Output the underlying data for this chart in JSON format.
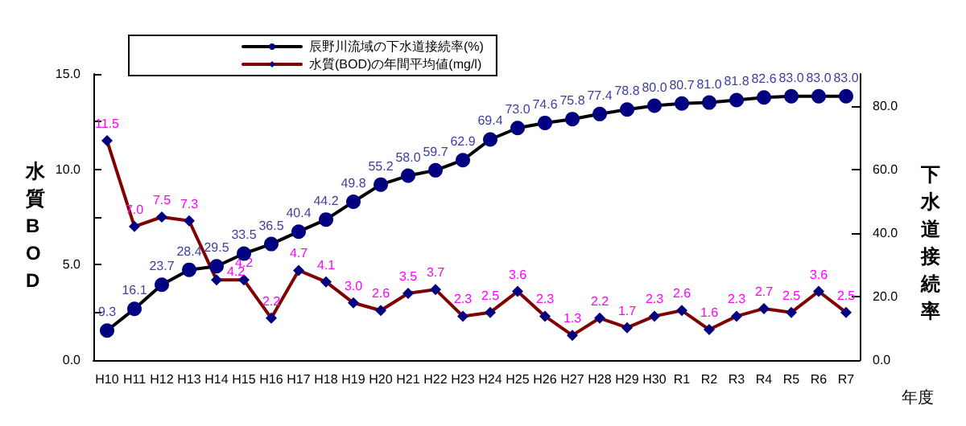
{
  "chart_data": {
    "type": "line",
    "categories": [
      "H10",
      "H11",
      "H12",
      "H13",
      "H14",
      "H15",
      "H16",
      "H17",
      "H18",
      "H19",
      "H20",
      "H21",
      "H22",
      "H23",
      "H24",
      "H25",
      "H26",
      "H27",
      "H28",
      "H29",
      "H30",
      "R1",
      "R2",
      "R3",
      "R4",
      "R5",
      "R6",
      "R7"
    ],
    "series": [
      {
        "name": "辰野川流域の下水道接続率(%)",
        "color": "#000000",
        "colors": [
          "#000080",
          "#000080",
          "#000080",
          "#000080",
          "#000080",
          "#000080",
          "#000080",
          "#000080",
          "#000080",
          "#000080",
          "#000080",
          "#000080",
          "#000080",
          "#000080",
          "#000080",
          "#000080",
          "#000080",
          "#000080",
          "#000080",
          "#000080",
          "#000080",
          "#000080",
          "#000080",
          "#000080",
          "#000080",
          "#000080",
          "#000080",
          "#000080"
        ],
        "marker": "circle",
        "axis": "y2",
        "values": [
          9.3,
          16.1,
          23.7,
          28.4,
          29.5,
          33.5,
          36.5,
          40.4,
          44.2,
          49.8,
          55.2,
          58.0,
          59.7,
          62.9,
          69.4,
          73.0,
          74.6,
          75.8,
          77.4,
          78.8,
          80.0,
          80.7,
          81.0,
          81.8,
          82.6,
          83.0,
          83.0,
          83.0
        ],
        "value_labels": [
          "9.3",
          "16.1",
          "23.7",
          "28.4",
          "29.5",
          "33.5",
          "36.5",
          "40.4",
          "44.2",
          "49.8",
          "55.2",
          "58.0",
          "59.7",
          "62.9",
          "69.4",
          "73.0",
          "74.6",
          "75.8",
          "77.4",
          "78.8",
          "80.0",
          "80.7",
          "81.0",
          "81.8",
          "82.6",
          "83.0",
          "83.0",
          "83.0"
        ]
      },
      {
        "name": "水質(BOD)の年間平均値(mg/l)",
        "color": "#800000",
        "colors": [
          "#000080",
          "#000080",
          "#000080",
          "#000080",
          "#000080",
          "#000080",
          "#000080",
          "#000080",
          "#000080",
          "#000080",
          "#000080",
          "#000080",
          "#000080",
          "#000080",
          "#000080",
          "#000080",
          "#000080",
          "#000080",
          "#000080",
          "#000080",
          "#000080",
          "#000080",
          "#000080",
          "#000080",
          "#000080",
          "#000080",
          "#000080",
          "#000080"
        ],
        "marker": "diamond",
        "values": [
          11.5,
          7.0,
          7.5,
          7.3,
          4.2,
          4.2,
          2.2,
          4.7,
          4.1,
          3.0,
          2.6,
          3.5,
          3.7,
          2.3,
          2.5,
          3.6,
          2.3,
          1.3,
          2.2,
          1.7,
          2.3,
          2.6,
          1.6,
          2.3,
          2.7,
          2.5,
          3.6,
          2.5
        ],
        "value_labels": [
          "11.5",
          "7.0",
          "7.5",
          "7.3",
          "4.2",
          "4.2",
          "2.2",
          "4.7",
          "4.1",
          "3.0",
          "2.6",
          "3.5",
          "3.7",
          "2.3",
          "2.5",
          "3.6",
          "2.3",
          "1.3",
          "2.2",
          "1.7",
          "2.3",
          "2.6",
          "1.6",
          "2.3",
          "2.7",
          "2.5",
          "3.6",
          "2.5"
        ]
      }
    ],
    "ylim": [
      0,
      15
    ],
    "yticks": [
      {
        "value": 0,
        "label": "0.0"
      },
      {
        "value": 2.5,
        "label": null
      },
      {
        "value": 5,
        "label": "5.0"
      },
      {
        "value": 7.5,
        "label": null
      },
      {
        "value": 10,
        "label": "10.0"
      },
      {
        "value": 12.5,
        "label": null
      },
      {
        "value": 15,
        "label": "15.0"
      }
    ],
    "y2lim": [
      0,
      90
    ],
    "y2ticks": [
      {
        "value": 0,
        "label": "0.0"
      },
      {
        "value": 20,
        "label": "20.0"
      },
      {
        "value": 40,
        "label": "40.0"
      },
      {
        "value": 60,
        "label": "60.0"
      },
      {
        "value": 80,
        "label": "80.0"
      }
    ],
    "ylabel": "水質BOD",
    "y2label": "下水道接続率",
    "xlabel": "年度",
    "grid": false,
    "legend": "top",
    "line_style": "solid"
  }
}
